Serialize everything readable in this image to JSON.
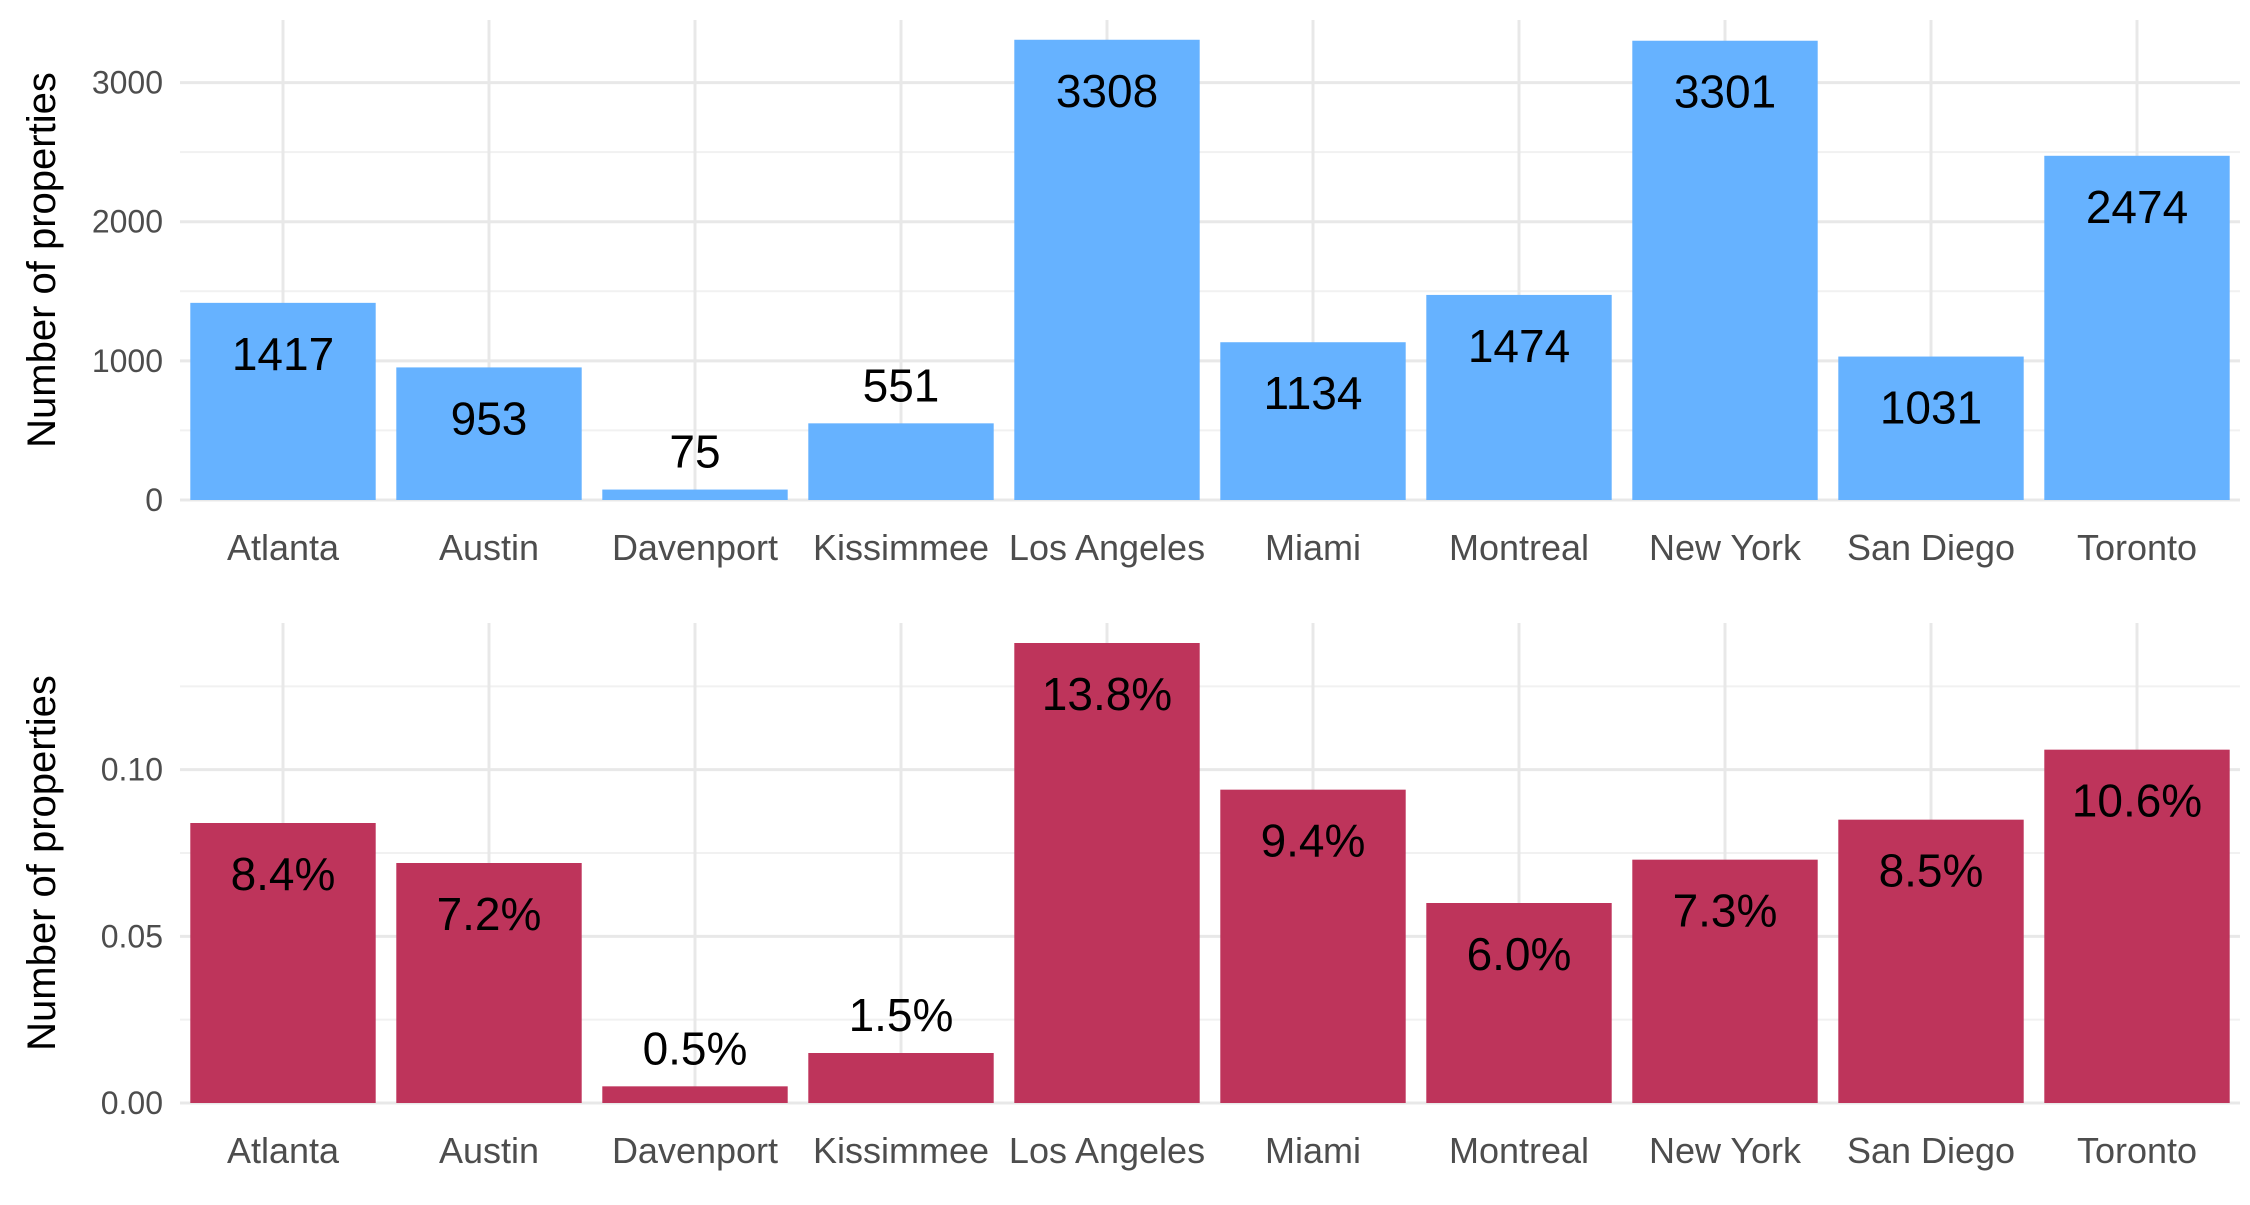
{
  "chart_data": [
    {
      "type": "bar",
      "categories": [
        "Atlanta",
        "Austin",
        "Davenport",
        "Kissimmee",
        "Los Angeles",
        "Miami",
        "Montreal",
        "New York",
        "San Diego",
        "Toronto"
      ],
      "values": [
        1417,
        953,
        75,
        551,
        3308,
        1134,
        1474,
        3301,
        1031,
        2474
      ],
      "data_labels": [
        "1417",
        "953",
        "75",
        "551",
        "3308",
        "1134",
        "1474",
        "3301",
        "1031",
        "2474"
      ],
      "xlabel": "",
      "ylabel": "Number of properties",
      "yticks": [
        0,
        1000,
        2000,
        3000
      ],
      "ytick_labels": [
        "0",
        "1000",
        "2000",
        "3000"
      ],
      "ylim": [
        0,
        3450
      ],
      "grid": true,
      "color": "#66b2ff"
    },
    {
      "type": "bar",
      "categories": [
        "Atlanta",
        "Austin",
        "Davenport",
        "Kissimmee",
        "Los Angeles",
        "Miami",
        "Montreal",
        "New York",
        "San Diego",
        "Toronto"
      ],
      "values": [
        0.084,
        0.072,
        0.005,
        0.015,
        0.138,
        0.094,
        0.06,
        0.073,
        0.085,
        0.106
      ],
      "data_labels": [
        "8.4%",
        "7.2%",
        "0.5%",
        "1.5%",
        "13.8%",
        "9.4%",
        "6.0%",
        "7.3%",
        "8.5%",
        "10.6%"
      ],
      "xlabel": "",
      "ylabel": "Number of properties",
      "yticks": [
        0,
        0.05,
        0.1
      ],
      "ytick_labels": [
        "0.00",
        "0.05",
        "0.10"
      ],
      "ylim": [
        0,
        0.144
      ],
      "grid": true,
      "color": "#be345b"
    }
  ]
}
